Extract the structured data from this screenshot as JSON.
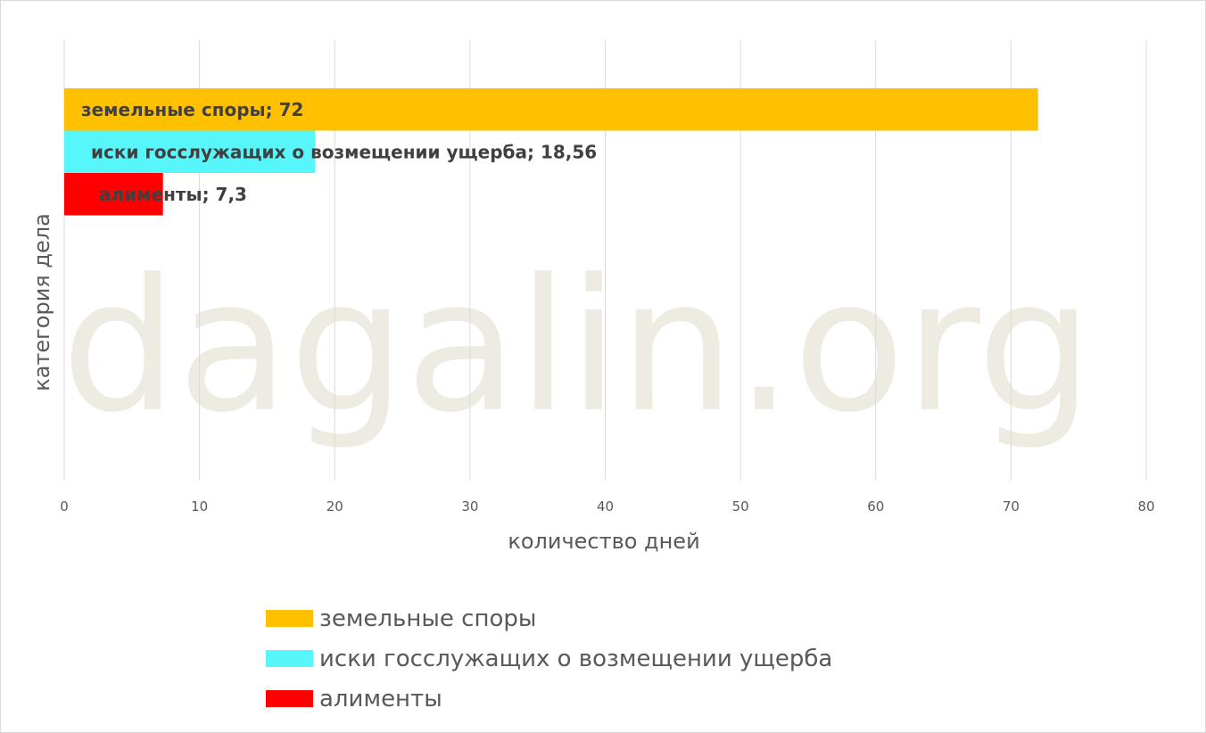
{
  "watermark": "dagalin.org",
  "chart_data": {
    "type": "bar",
    "orientation": "horizontal",
    "xlabel": "количество дней",
    "ylabel": "категория дела",
    "xlim": [
      0,
      80
    ],
    "x_ticks": [
      0,
      10,
      20,
      30,
      40,
      50,
      60,
      70,
      80
    ],
    "grid": true,
    "legend_position": "bottom",
    "series": [
      {
        "name": "земельные споры",
        "value": 72,
        "value_label": "72",
        "color": "#ffc000"
      },
      {
        "name": "иски госслужащих о возмещении ущерба",
        "value": 18.56,
        "value_label": "18,56",
        "color": "#57f6fb"
      },
      {
        "name": "алименты",
        "value": 7.3,
        "value_label": "7,3",
        "color": "#ff0000"
      }
    ]
  }
}
